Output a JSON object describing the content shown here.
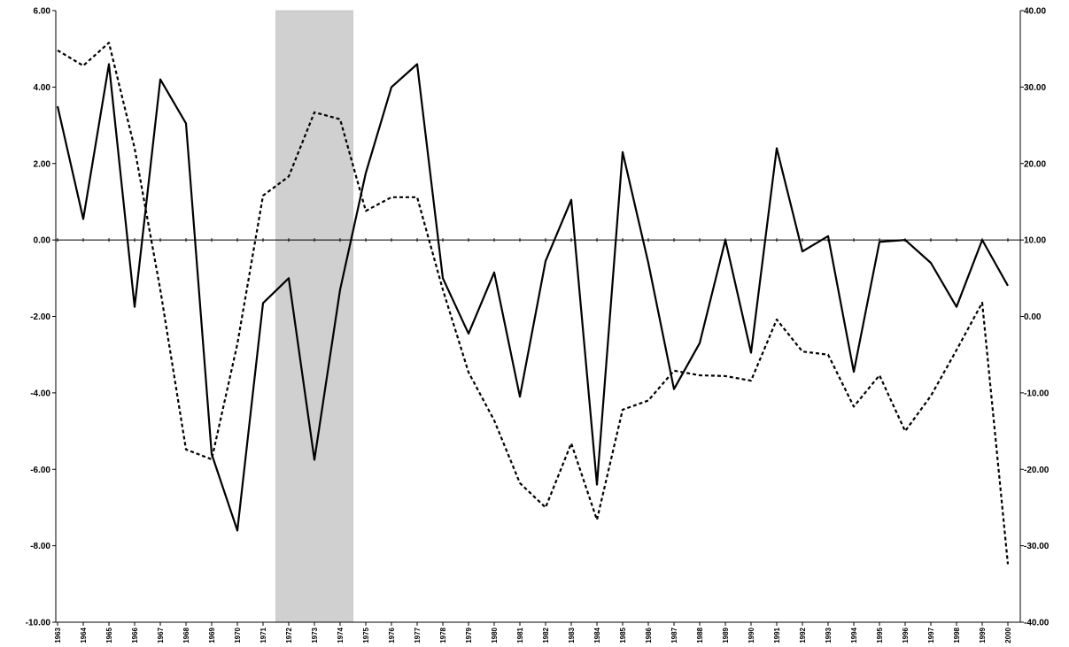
{
  "chart_data": {
    "type": "line",
    "title": "",
    "xlabel": "",
    "ylabel": "",
    "y2label": "",
    "categories": [
      "1963",
      "1964",
      "1965",
      "1966",
      "1967",
      "1968",
      "1969",
      "1970",
      "1971",
      "1972",
      "1973",
      "1974",
      "1975",
      "1976",
      "1977",
      "1978",
      "1979",
      "1980",
      "1981",
      "1982",
      "1983",
      "1984",
      "1985",
      "1986",
      "1987",
      "1988",
      "1989",
      "1990",
      "1991",
      "1992",
      "1993",
      "1994",
      "1995",
      "1996",
      "1997",
      "1998",
      "1999",
      "2000"
    ],
    "ylim": [
      -10,
      6
    ],
    "y2lim": [
      -40,
      40
    ],
    "y_ticks": [
      "6.00",
      "4.00",
      "2.00",
      "0.00",
      "-2.00",
      "-4.00",
      "-6.00",
      "-8.00",
      "-10.00"
    ],
    "y2_ticks": [
      "40.00",
      "30.00",
      "20.00",
      "10.00",
      "0.00",
      "-10.00",
      "-20.00",
      "-30.00",
      "-40.00"
    ],
    "shaded_range": [
      "1972",
      "1974"
    ],
    "shade_color": "#d0d0d0",
    "line_color": "#000000",
    "series": [
      {
        "axis": "left",
        "style": "solid",
        "values": [
          3.5,
          0.55,
          4.6,
          -1.75,
          4.2,
          3.05,
          -5.6,
          -7.6,
          -1.65,
          -1.0,
          -5.75,
          -1.3,
          1.75,
          4.0,
          4.6,
          -1.0,
          -2.45,
          -0.85,
          -4.1,
          -0.55,
          1.05,
          -6.4,
          2.3,
          -0.6,
          -3.9,
          -2.7,
          0.0,
          -2.95,
          2.4,
          -0.3,
          0.1,
          -3.45,
          -0.05,
          0.0,
          -0.6,
          -1.75,
          0.0,
          -1.2
        ]
      },
      {
        "axis": "right",
        "style": "dotted",
        "values": [
          34.8,
          32.8,
          35.8,
          22.0,
          3.5,
          -17.4,
          -18.7,
          -3.6,
          15.8,
          18.3,
          26.7,
          25.8,
          13.8,
          15.6,
          15.6,
          3.5,
          -7.3,
          -13.6,
          -21.8,
          -25.0,
          -16.6,
          -26.6,
          -12.2,
          -11.0,
          -7.1,
          -7.7,
          -7.8,
          -8.4,
          -0.4,
          -4.6,
          -5.0,
          -11.8,
          -7.7,
          -15.0,
          -10.4,
          -4.4,
          1.8,
          -32.4
        ]
      }
    ]
  }
}
